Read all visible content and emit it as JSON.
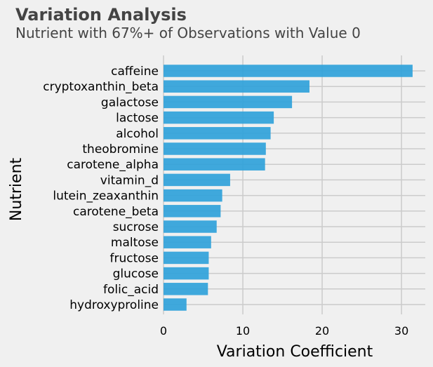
{
  "chart_data": {
    "type": "bar",
    "orientation": "horizontal",
    "title": "Variation Analysis",
    "subtitle": "Nutrient with 67%+ of Observations with Value 0",
    "xlabel": "Variation Coefficient",
    "ylabel": "Nutrient",
    "xlim": [
      0,
      33
    ],
    "xticks": [
      0,
      10,
      20,
      30
    ],
    "grid": true,
    "categories": [
      "caffeine",
      "cryptoxanthin_beta",
      "galactose",
      "lactose",
      "alcohol",
      "theobromine",
      "carotene_alpha",
      "vitamin_d",
      "lutein_zeaxanthin",
      "carotene_beta",
      "sucrose",
      "maltose",
      "fructose",
      "glucose",
      "folic_acid",
      "hydroxyproline"
    ],
    "values": [
      31.4,
      18.4,
      16.2,
      13.9,
      13.5,
      12.9,
      12.8,
      8.4,
      7.4,
      7.2,
      6.7,
      6.0,
      5.7,
      5.7,
      5.6,
      2.9
    ],
    "colors": {
      "bar": "#30a2da",
      "background": "#f0f0f0",
      "grid": "#cbcbcb",
      "title": "#444444",
      "text": "#000000"
    }
  }
}
